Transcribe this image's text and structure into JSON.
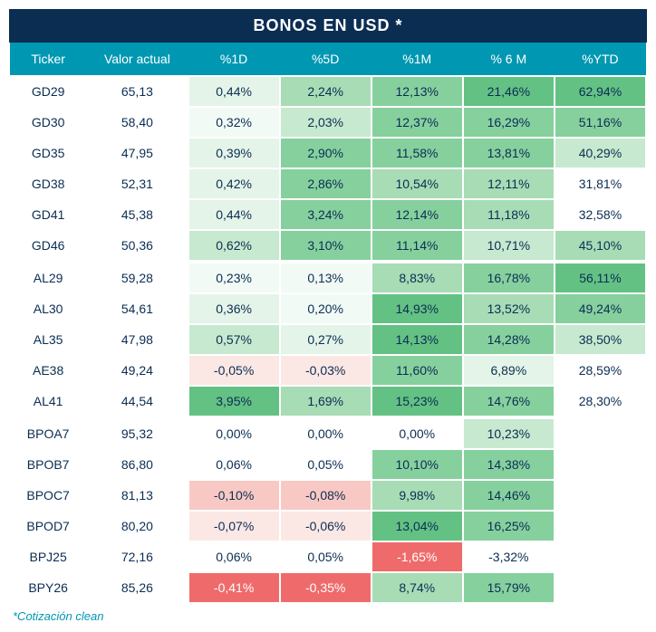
{
  "title": "BONOS EN USD *",
  "footnote": "*Cotización clean",
  "colors": {
    "title_bg": "#0b2d52",
    "header_bg": "#0097b2",
    "text": "#0b2d52",
    "heat_neg_strong": "#ef6b6b",
    "heat_neg_mid": "#f8c9c4",
    "heat_neg_light": "#fbe7e4",
    "heat_pos_0": "#ffffff",
    "heat_pos_1": "#f2faf5",
    "heat_pos_2": "#e4f4e8",
    "heat_pos_3": "#c7e9cf",
    "heat_pos_4": "#a7dcb5",
    "heat_pos_5": "#86d09e",
    "heat_pos_6": "#63c184"
  },
  "columns": [
    "Ticker",
    "Valor actual",
    "%1D",
    "%5D",
    "%1M",
    "% 6 M",
    "%YTD"
  ],
  "groups": [
    {
      "rows": [
        {
          "ticker": "GD29",
          "valor": "65,13",
          "cells": [
            {
              "v": "0,44%",
              "h": 2
            },
            {
              "v": "2,24%",
              "h": 4
            },
            {
              "v": "12,13%",
              "h": 5
            },
            {
              "v": "21,46%",
              "h": 6
            },
            {
              "v": "62,94%",
              "h": 6
            }
          ]
        },
        {
          "ticker": "GD30",
          "valor": "58,40",
          "cells": [
            {
              "v": "0,32%",
              "h": 1
            },
            {
              "v": "2,03%",
              "h": 3
            },
            {
              "v": "12,37%",
              "h": 5
            },
            {
              "v": "16,29%",
              "h": 5
            },
            {
              "v": "51,16%",
              "h": 5
            }
          ]
        },
        {
          "ticker": "GD35",
          "valor": "47,95",
          "cells": [
            {
              "v": "0,39%",
              "h": 2
            },
            {
              "v": "2,90%",
              "h": 5
            },
            {
              "v": "11,58%",
              "h": 5
            },
            {
              "v": "13,81%",
              "h": 5
            },
            {
              "v": "40,29%",
              "h": 3
            }
          ]
        },
        {
          "ticker": "GD38",
          "valor": "52,31",
          "cells": [
            {
              "v": "0,42%",
              "h": 2
            },
            {
              "v": "2,86%",
              "h": 5
            },
            {
              "v": "10,54%",
              "h": 4
            },
            {
              "v": "12,11%",
              "h": 4
            },
            {
              "v": "31,81%",
              "h": 0
            }
          ]
        },
        {
          "ticker": "GD41",
          "valor": "45,38",
          "cells": [
            {
              "v": "0,44%",
              "h": 2
            },
            {
              "v": "3,24%",
              "h": 5
            },
            {
              "v": "12,14%",
              "h": 5
            },
            {
              "v": "11,18%",
              "h": 4
            },
            {
              "v": "32,58%",
              "h": 0
            }
          ]
        },
        {
          "ticker": "GD46",
          "valor": "50,36",
          "cells": [
            {
              "v": "0,62%",
              "h": 3
            },
            {
              "v": "3,10%",
              "h": 5
            },
            {
              "v": "11,14%",
              "h": 5
            },
            {
              "v": "10,71%",
              "h": 3
            },
            {
              "v": "45,10%",
              "h": 4
            }
          ]
        }
      ]
    },
    {
      "rows": [
        {
          "ticker": "AL29",
          "valor": "59,28",
          "cells": [
            {
              "v": "0,23%",
              "h": 1
            },
            {
              "v": "0,13%",
              "h": 1
            },
            {
              "v": "8,83%",
              "h": 4
            },
            {
              "v": "16,78%",
              "h": 5
            },
            {
              "v": "56,11%",
              "h": 6
            }
          ]
        },
        {
          "ticker": "AL30",
          "valor": "54,61",
          "cells": [
            {
              "v": "0,36%",
              "h": 2
            },
            {
              "v": "0,20%",
              "h": 1
            },
            {
              "v": "14,93%",
              "h": 6
            },
            {
              "v": "13,52%",
              "h": 4
            },
            {
              "v": "49,24%",
              "h": 5
            }
          ]
        },
        {
          "ticker": "AL35",
          "valor": "47,98",
          "cells": [
            {
              "v": "0,57%",
              "h": 3
            },
            {
              "v": "0,27%",
              "h": 2
            },
            {
              "v": "14,13%",
              "h": 6
            },
            {
              "v": "14,28%",
              "h": 5
            },
            {
              "v": "38,50%",
              "h": 3
            }
          ]
        },
        {
          "ticker": "AE38",
          "valor": "49,24",
          "cells": [
            {
              "v": "-0,05%",
              "h": -1
            },
            {
              "v": "-0,03%",
              "h": -1
            },
            {
              "v": "11,60%",
              "h": 5
            },
            {
              "v": "6,89%",
              "h": 2
            },
            {
              "v": "28,59%",
              "h": 0
            }
          ]
        },
        {
          "ticker": "AL41",
          "valor": "44,54",
          "cells": [
            {
              "v": "3,95%",
              "h": 6
            },
            {
              "v": "1,69%",
              "h": 4
            },
            {
              "v": "15,23%",
              "h": 6
            },
            {
              "v": "14,76%",
              "h": 5
            },
            {
              "v": "28,30%",
              "h": 0
            }
          ]
        }
      ]
    },
    {
      "rows": [
        {
          "ticker": "BPOA7",
          "valor": "95,32",
          "cells": [
            {
              "v": "0,00%",
              "h": 0
            },
            {
              "v": "0,00%",
              "h": 0
            },
            {
              "v": "0,00%",
              "h": 0
            },
            {
              "v": "10,23%",
              "h": 3
            },
            {
              "v": "",
              "h": null
            }
          ]
        },
        {
          "ticker": "BPOB7",
          "valor": "86,80",
          "cells": [
            {
              "v": "0,06%",
              "h": 0
            },
            {
              "v": "0,05%",
              "h": 0
            },
            {
              "v": "10,10%",
              "h": 5
            },
            {
              "v": "14,38%",
              "h": 5
            },
            {
              "v": "",
              "h": null
            }
          ]
        },
        {
          "ticker": "BPOC7",
          "valor": "81,13",
          "cells": [
            {
              "v": "-0,10%",
              "h": -2
            },
            {
              "v": "-0,08%",
              "h": -2
            },
            {
              "v": "9,98%",
              "h": 4
            },
            {
              "v": "14,46%",
              "h": 5
            },
            {
              "v": "",
              "h": null
            }
          ]
        },
        {
          "ticker": "BPOD7",
          "valor": "80,20",
          "cells": [
            {
              "v": "-0,07%",
              "h": -1
            },
            {
              "v": "-0,06%",
              "h": -1
            },
            {
              "v": "13,04%",
              "h": 6
            },
            {
              "v": "16,25%",
              "h": 5
            },
            {
              "v": "",
              "h": null
            }
          ]
        },
        {
          "ticker": "BPJ25",
          "valor": "72,16",
          "cells": [
            {
              "v": "0,06%",
              "h": 0
            },
            {
              "v": "0,05%",
              "h": 0
            },
            {
              "v": "-1,65%",
              "h": -3
            },
            {
              "v": "-3,32%",
              "h": 0
            },
            {
              "v": "",
              "h": null
            }
          ]
        },
        {
          "ticker": "BPY26",
          "valor": "85,26",
          "cells": [
            {
              "v": "-0,41%",
              "h": -3
            },
            {
              "v": "-0,35%",
              "h": -3
            },
            {
              "v": "8,74%",
              "h": 4
            },
            {
              "v": "15,79%",
              "h": 5
            },
            {
              "v": "",
              "h": null
            }
          ]
        }
      ]
    }
  ]
}
